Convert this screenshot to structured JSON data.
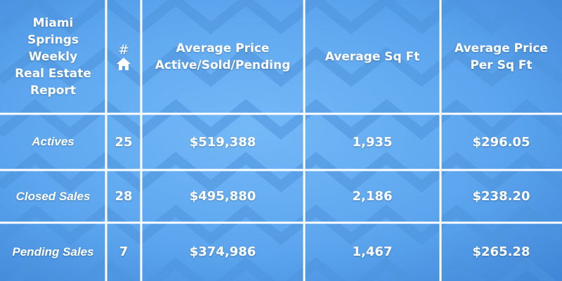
{
  "report": {
    "title_lines": [
      "Miami",
      "Springs",
      "Weekly",
      "Real Estate",
      "Report"
    ]
  },
  "columns": {
    "count_symbol": "#",
    "count_icon": "house-icon",
    "avg_price_lines": [
      "Average Price",
      "Active/Sold/Pending"
    ],
    "avg_sqft": "Average Sq Ft",
    "avg_price_sqft_lines": [
      "Average Price",
      "Per Sq Ft"
    ]
  },
  "rows": [
    {
      "label": "Actives",
      "count": "25",
      "avg_price": "$519,388",
      "avg_sqft": "1,935",
      "price_per_sqft": "$296.05"
    },
    {
      "label": "Closed Sales",
      "count": "28",
      "avg_price": "$495,880",
      "avg_sqft": "2,186",
      "price_per_sqft": "$238.20"
    },
    {
      "label": "Pending Sales",
      "count": "7",
      "avg_price": "$374,986",
      "avg_sqft": "1,467",
      "price_per_sqft": "$265.28"
    }
  ],
  "colors": {
    "background": "#5da6ef",
    "grid_line": "#ffffff",
    "text": "#ffffff"
  }
}
